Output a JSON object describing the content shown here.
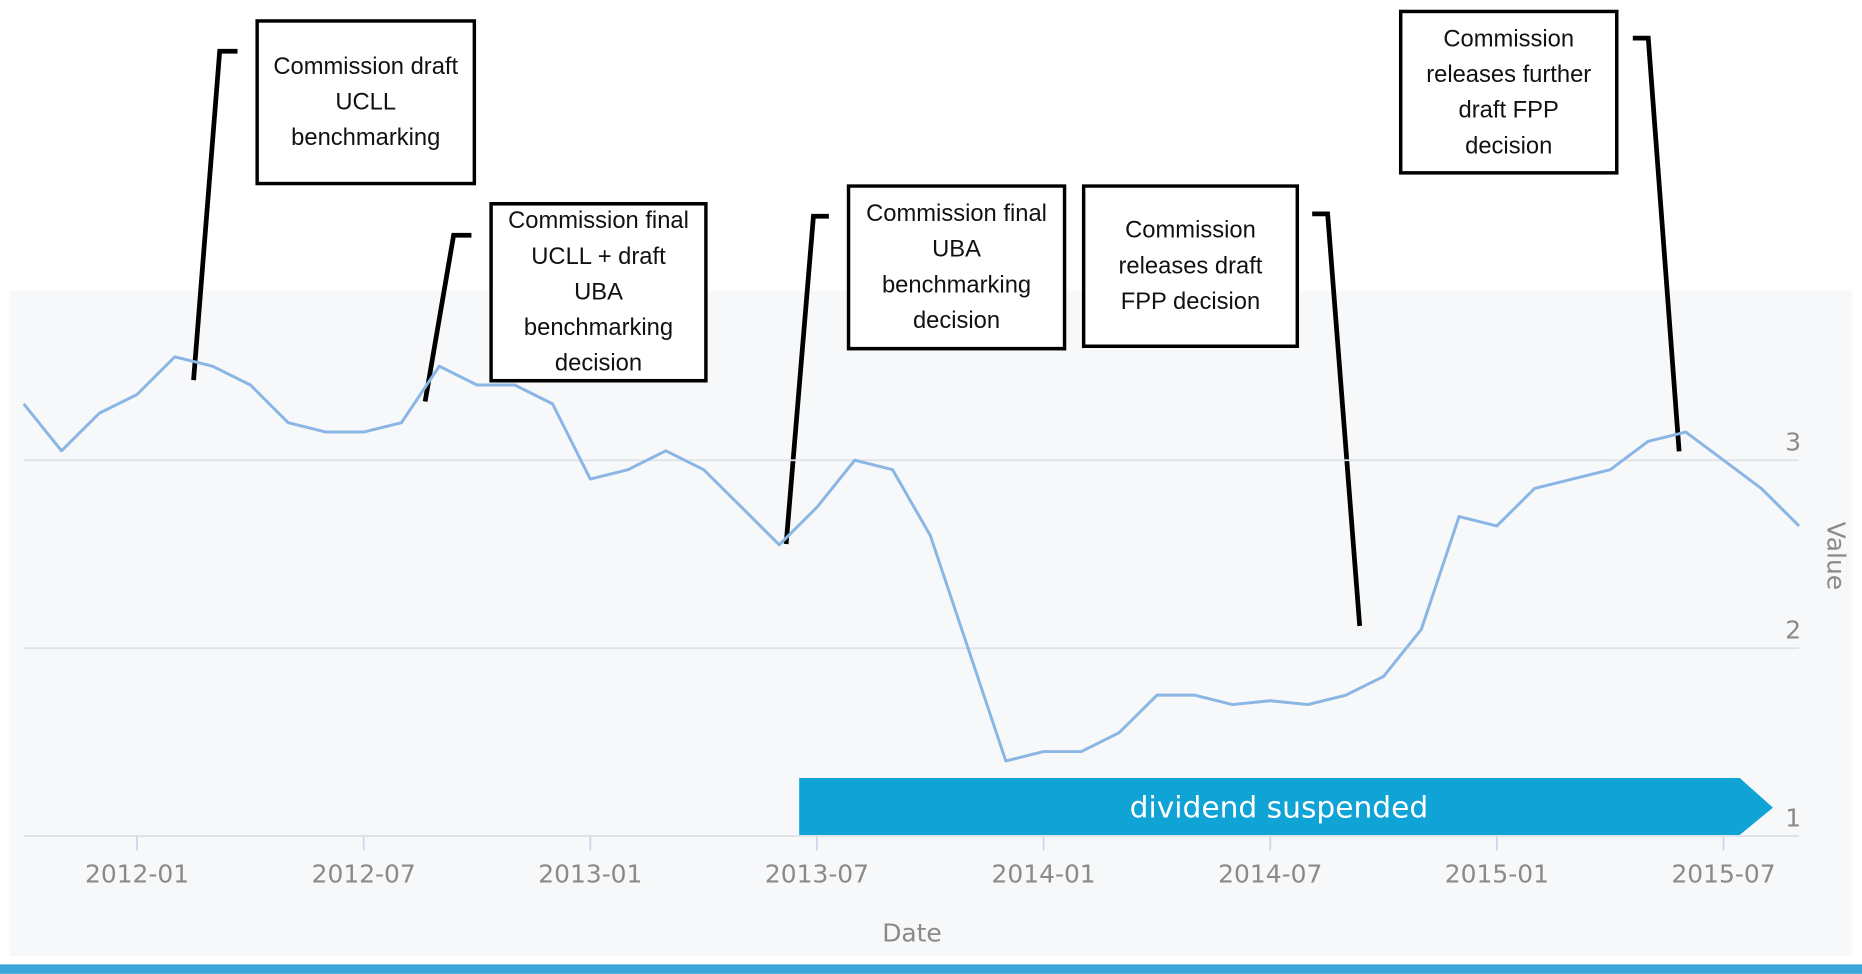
{
  "chart_data": {
    "type": "line",
    "x": [
      "2011-10",
      "2011-11",
      "2011-12",
      "2012-01",
      "2012-02",
      "2012-03",
      "2012-04",
      "2012-05",
      "2012-06",
      "2012-07",
      "2012-08",
      "2012-09",
      "2012-10",
      "2012-11",
      "2012-12",
      "2013-01",
      "2013-02",
      "2013-03",
      "2013-04",
      "2013-05",
      "2013-06",
      "2013-07",
      "2013-08",
      "2013-09",
      "2013-10",
      "2013-11",
      "2013-12",
      "2014-01",
      "2014-02",
      "2014-03",
      "2014-04",
      "2014-05",
      "2014-06",
      "2014-07",
      "2014-08",
      "2014-09",
      "2014-10",
      "2014-11",
      "2014-12",
      "2015-01",
      "2015-02",
      "2015-03",
      "2015-04",
      "2015-05",
      "2015-06",
      "2015-07",
      "2015-08",
      "2015-09"
    ],
    "values": [
      3.3,
      3.05,
      3.25,
      3.35,
      3.55,
      3.5,
      3.4,
      3.2,
      3.15,
      3.15,
      3.2,
      3.5,
      3.4,
      3.4,
      3.3,
      2.9,
      2.95,
      3.05,
      2.95,
      2.75,
      2.55,
      2.75,
      3.0,
      2.95,
      2.6,
      2.0,
      1.4,
      1.45,
      1.45,
      1.55,
      1.75,
      1.75,
      1.7,
      1.72,
      1.7,
      1.75,
      1.85,
      2.1,
      2.7,
      2.65,
      2.85,
      2.9,
      2.95,
      3.1,
      3.15,
      3.0,
      2.85,
      2.65
    ],
    "color": "#8ab6e6",
    "xticks": [
      "2012-01",
      "2012-07",
      "2013-01",
      "2013-07",
      "2014-01",
      "2014-07",
      "2015-01",
      "2015-07"
    ],
    "ylim": [
      1,
      3.9
    ],
    "yticks": [
      1,
      2,
      3
    ],
    "grid": true,
    "xlabel": "Date",
    "ylabel": "Value",
    "annotations": [
      "Commission draft UCLL benchmarking",
      "Commission final UCLL + draft UBA benchmarking decision",
      "Commission final UBA benchmarking decision",
      "Commission releases draft FPP decision",
      "Commission releases further draft FPP decision"
    ],
    "band_label": "dividend suspended"
  }
}
